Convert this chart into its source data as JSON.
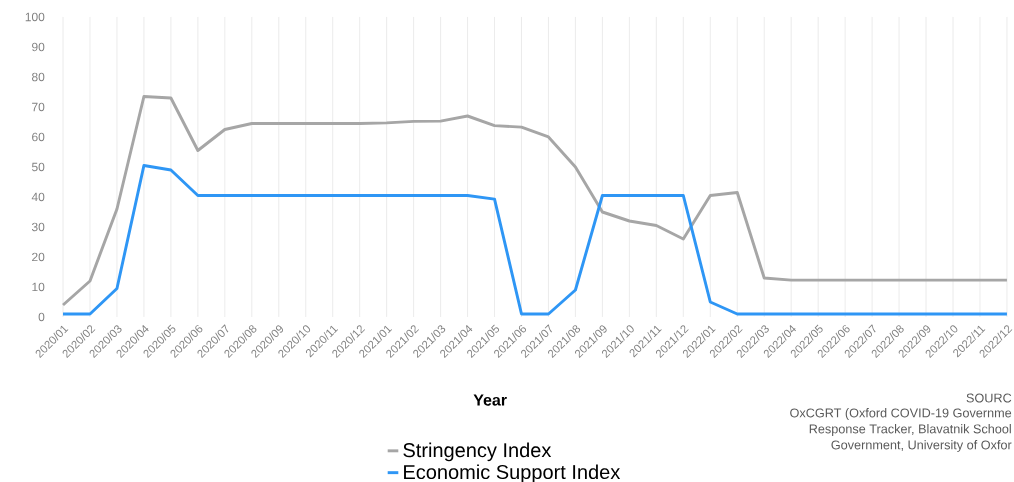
{
  "chart_data": {
    "type": "line",
    "xlabel": "Year",
    "categories": [
      "2020/01",
      "2020/02",
      "2020/03",
      "2020/04",
      "2020/05",
      "2020/06",
      "2020/07",
      "2020/08",
      "2020/09",
      "2020/10",
      "2020/11",
      "2020/12",
      "2021/01",
      "2021/02",
      "2021/03",
      "2021/04",
      "2021/05",
      "2021/06",
      "2021/07",
      "2021/08",
      "2021/09",
      "2021/10",
      "2021/11",
      "2021/12",
      "2022/01",
      "2022/02",
      "2022/03",
      "2022/04",
      "2022/05",
      "2022/06",
      "2022/07",
      "2022/08",
      "2022/09",
      "2022/10",
      "2022/11",
      "2022/12"
    ],
    "series": [
      {
        "name": "Stringency Index",
        "color": "#a6a6a6",
        "values": [
          4,
          12,
          36,
          73.5,
          73,
          55.5,
          62.5,
          64.5,
          64.5,
          64.5,
          64.5,
          64.5,
          64.7,
          65.2,
          65.3,
          67,
          63.8,
          63.3,
          60,
          50,
          35,
          32,
          30.5,
          26,
          40.5,
          41.5,
          13,
          12.3,
          12.3,
          12.3,
          12.3,
          12.3,
          12.3,
          12.3,
          12.3,
          12.3
        ]
      },
      {
        "name": "Economic Support Index",
        "color": "#2e96f5",
        "values": [
          1,
          1,
          9.5,
          50.5,
          49,
          40.5,
          40.5,
          40.5,
          40.5,
          40.5,
          40.5,
          40.5,
          40.5,
          40.5,
          40.5,
          40.5,
          39.3,
          1,
          1,
          9,
          40.5,
          40.5,
          40.5,
          40.5,
          5,
          1,
          1,
          1,
          1,
          1,
          1,
          1,
          1,
          1,
          1,
          1
        ]
      }
    ],
    "ylim": [
      0,
      100
    ],
    "yticks": [
      0,
      10,
      20,
      30,
      40,
      50,
      60,
      70,
      80,
      90,
      100
    ],
    "grid": "x",
    "legend": "bottom",
    "marker": "none",
    "line_style": "solid",
    "annotations": [
      "SOURC",
      "OxCGRT (Oxford COVID-19 Governme",
      "Response Tracker, Blavatnik School",
      "Government, University of Oxfor"
    ]
  }
}
